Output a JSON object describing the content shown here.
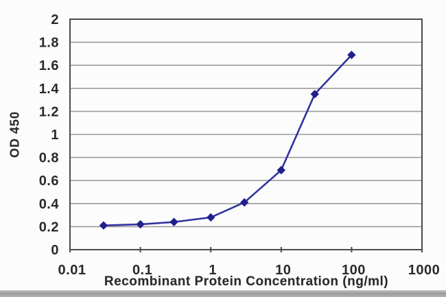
{
  "chart_data": {
    "type": "line",
    "title": "",
    "xlabel": "Recombinant Protein Concentration (ng/ml)",
    "ylabel": "OD 450",
    "x_scale": "log",
    "x": [
      0.03,
      0.1,
      0.3,
      1,
      3,
      10,
      30,
      100
    ],
    "y": [
      0.21,
      0.22,
      0.24,
      0.28,
      0.41,
      0.69,
      1.35,
      1.69
    ],
    "xlim": [
      0.01,
      1000
    ],
    "ylim": [
      0,
      2
    ],
    "x_ticks": [
      0.01,
      0.1,
      1,
      10,
      100,
      1000
    ],
    "x_tick_labels": [
      "0.01",
      "0.1",
      "1",
      "10",
      "100",
      "1000"
    ],
    "y_ticks": [
      0,
      0.2,
      0.4,
      0.6,
      0.8,
      1,
      1.2,
      1.4,
      1.6,
      1.8,
      2
    ],
    "y_tick_labels": [
      "0",
      "0.2",
      "0.4",
      "0.6",
      "0.8",
      "1",
      "1.2",
      "1.4",
      "1.6",
      "1.8",
      "2"
    ],
    "grid": "horizontal-only",
    "legend": "none",
    "marker": "diamond",
    "colors": {
      "line": "#3333a0",
      "marker": "#20208c",
      "grid": "#9b9b9b",
      "frame": "#4a4a4a",
      "text": "#2a2a2a",
      "background": "#fcfcfc",
      "edge_strip": "#a8a8a8"
    }
  }
}
